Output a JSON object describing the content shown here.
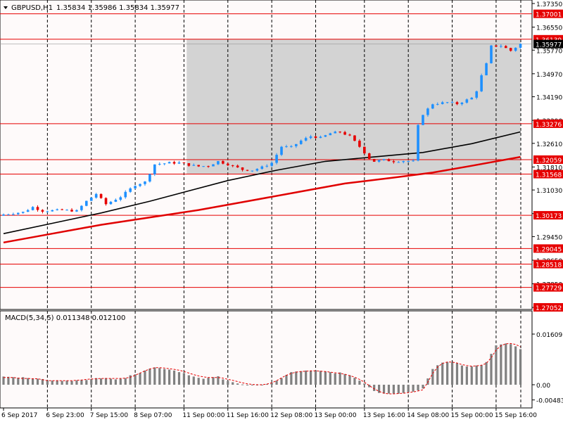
{
  "chart_data": {
    "type": "candlestick",
    "symbol_header": "GBPUSD,H1",
    "ohlc_header": "1.35834 1.35986 1.35834 1.35977",
    "ylim": [
      1.27052,
      1.3735
    ],
    "price_ticks": [
      "1.37350",
      "1.36550",
      "1.35770",
      "1.34970",
      "1.34190",
      "1.33390",
      "1.32610",
      "1.31810",
      "1.31030",
      "1.30230",
      "1.29450",
      "1.28650",
      "1.27850",
      "1.27050"
    ],
    "levels": [
      "1.37001",
      "1.36139",
      "1.33276",
      "1.32059",
      "1.31568",
      "1.30173",
      "1.29045",
      "1.28518",
      "1.27729",
      "1.27052"
    ],
    "current_price": "1.35977",
    "zone": {
      "from_index": 38,
      "to_index": 106,
      "low": 1.31568,
      "high": 1.36139
    },
    "time_labels": [
      {
        "label": "6 Sep 2017",
        "index": 0
      },
      {
        "label": "6 Sep 23:00",
        "index": 9
      },
      {
        "label": "7 Sep 15:00",
        "index": 18
      },
      {
        "label": "8 Sep 07:00",
        "index": 27
      },
      {
        "label": "11 Sep 00:00",
        "index": 37
      },
      {
        "label": "11 Sep 16:00",
        "index": 46
      },
      {
        "label": "12 Sep 08:00",
        "index": 55
      },
      {
        "label": "13 Sep 00:00",
        "index": 64
      },
      {
        "label": "13 Sep 16:00",
        "index": 74
      },
      {
        "label": "14 Sep 08:00",
        "index": 83
      },
      {
        "label": "15 Sep 00:00",
        "index": 92
      },
      {
        "label": "15 Sep 16:00",
        "index": 101
      }
    ],
    "close_path": [
      [
        0,
        1.302
      ],
      [
        4,
        1.3028
      ],
      [
        6,
        1.3045
      ],
      [
        8,
        1.3032
      ],
      [
        12,
        1.3035
      ],
      [
        15,
        1.3032
      ],
      [
        17,
        1.3065
      ],
      [
        19,
        1.309
      ],
      [
        21,
        1.3055
      ],
      [
        24,
        1.308
      ],
      [
        27,
        1.312
      ],
      [
        29,
        1.313
      ],
      [
        31,
        1.319
      ],
      [
        34,
        1.3195
      ],
      [
        36,
        1.3195
      ],
      [
        38,
        1.3188
      ],
      [
        40,
        1.3183
      ],
      [
        42,
        1.3185
      ],
      [
        44,
        1.32
      ],
      [
        46,
        1.319
      ],
      [
        49,
        1.3172
      ],
      [
        51,
        1.317
      ],
      [
        53,
        1.318
      ],
      [
        55,
        1.3195
      ],
      [
        57,
        1.325
      ],
      [
        59,
        1.3248
      ],
      [
        61,
        1.327
      ],
      [
        63,
        1.3285
      ],
      [
        65,
        1.328
      ],
      [
        67,
        1.3295
      ],
      [
        69,
        1.33
      ],
      [
        71,
        1.3285
      ],
      [
        73,
        1.325
      ],
      [
        75,
        1.321
      ],
      [
        76,
        1.32
      ],
      [
        78,
        1.3205
      ],
      [
        80,
        1.32
      ],
      [
        82,
        1.3202
      ],
      [
        84,
        1.32
      ],
      [
        85,
        1.332
      ],
      [
        86,
        1.336
      ],
      [
        88,
        1.3395
      ],
      [
        91,
        1.34
      ],
      [
        93,
        1.3395
      ],
      [
        96,
        1.3415
      ],
      [
        97,
        1.344
      ],
      [
        98,
        1.349
      ],
      [
        99,
        1.353
      ],
      [
        100,
        1.359
      ],
      [
        102,
        1.3592
      ],
      [
        104,
        1.3575
      ],
      [
        106,
        1.3598
      ]
    ],
    "moving_averages": [
      {
        "color": "#000000",
        "points": [
          [
            0,
            1.2955
          ],
          [
            10,
            1.299
          ],
          [
            20,
            1.3025
          ],
          [
            30,
            1.3065
          ],
          [
            38,
            1.31
          ],
          [
            46,
            1.3135
          ],
          [
            56,
            1.317
          ],
          [
            66,
            1.32
          ],
          [
            76,
            1.3215
          ],
          [
            86,
            1.323
          ],
          [
            96,
            1.326
          ],
          [
            106,
            1.33
          ]
        ]
      },
      {
        "color": "#e00000",
        "points": [
          [
            0,
            1.2925
          ],
          [
            10,
            1.2955
          ],
          [
            20,
            1.2985
          ],
          [
            30,
            1.301
          ],
          [
            40,
            1.3035
          ],
          [
            50,
            1.3065
          ],
          [
            60,
            1.3095
          ],
          [
            70,
            1.3125
          ],
          [
            80,
            1.3145
          ],
          [
            88,
            1.3162
          ],
          [
            96,
            1.3185
          ],
          [
            106,
            1.3215
          ]
        ]
      }
    ],
    "macd": {
      "label": "MACD(5,34,5) 0.011348 0.012100",
      "ylim": [
        -0.004835,
        0.01609
      ],
      "ticks": [
        "0.01609",
        "0.00",
        "-0.004835"
      ],
      "hist": [
        0.0026,
        0.0025,
        0.0024,
        0.0022,
        0.0024,
        0.0021,
        0.002,
        0.0019,
        0.0018,
        0.0014,
        0.0013,
        0.0014,
        0.0012,
        0.0013,
        0.0012,
        0.0014,
        0.0015,
        0.0015,
        0.0018,
        0.0021,
        0.002,
        0.0021,
        0.0019,
        0.0017,
        0.0019,
        0.0021,
        0.003,
        0.0033,
        0.0037,
        0.0045,
        0.0051,
        0.0055,
        0.0053,
        0.005,
        0.0048,
        0.0045,
        0.004,
        0.0037,
        0.003,
        0.0026,
        0.0022,
        0.0019,
        0.0022,
        0.0024,
        0.0027,
        0.0017,
        0.0012,
        0.0008,
        0.0004,
        0.0001,
        -0.0002,
        -0.0002,
        -0.0001,
        0.0,
        0.0002,
        0.0006,
        0.0013,
        0.0021,
        0.0031,
        0.004,
        0.0042,
        0.0043,
        0.0045,
        0.0045,
        0.0046,
        0.0044,
        0.0042,
        0.004,
        0.0036,
        0.0039,
        0.0034,
        0.003,
        0.0022,
        0.0013,
        0.0004,
        -0.0008,
        -0.002,
        -0.0026,
        -0.0028,
        -0.0028,
        -0.0028,
        -0.0028,
        -0.0026,
        -0.0024,
        -0.0022,
        -0.0018,
        -0.0012,
        0.002,
        0.005,
        0.0062,
        0.007,
        0.0072,
        0.0071,
        0.0068,
        0.0061,
        0.0058,
        0.0058,
        0.0061,
        0.0062,
        0.0072,
        0.0098,
        0.0125,
        0.0128,
        0.0131,
        0.0129,
        0.0122,
        0.0113
      ],
      "signal": [
        0.0023,
        0.0023,
        0.0023,
        0.0021,
        0.002,
        0.002,
        0.0019,
        0.0019,
        0.0016,
        0.0013,
        0.0013,
        0.0013,
        0.0013,
        0.0013,
        0.0013,
        0.0014,
        0.0015,
        0.0017,
        0.0018,
        0.0019,
        0.002,
        0.002,
        0.002,
        0.002,
        0.002,
        0.0021,
        0.0024,
        0.003,
        0.0037,
        0.0044,
        0.005,
        0.0054,
        0.0054,
        0.0053,
        0.0051,
        0.0049,
        0.0046,
        0.0042,
        0.0037,
        0.0032,
        0.0028,
        0.0025,
        0.0023,
        0.0023,
        0.0023,
        0.0021,
        0.0017,
        0.0014,
        0.001,
        0.0006,
        0.0003,
        0.0001,
        0.0,
        0.0,
        0.0002,
        0.0006,
        0.0013,
        0.0022,
        0.003,
        0.0036,
        0.004,
        0.0042,
        0.0043,
        0.0044,
        0.0044,
        0.0043,
        0.0042,
        0.004,
        0.0038,
        0.0036,
        0.0033,
        0.0029,
        0.0024,
        0.0017,
        0.0008,
        -0.0003,
        -0.0013,
        -0.0021,
        -0.0027,
        -0.0029,
        -0.0029,
        -0.0028,
        -0.0027,
        -0.0025,
        -0.0023,
        -0.002,
        -0.0016,
        0.0008,
        0.0036,
        0.0056,
        0.0068,
        0.0072,
        0.0072,
        0.0069,
        0.0064,
        0.0061,
        0.0059,
        0.006,
        0.0062,
        0.0068,
        0.0086,
        0.011,
        0.0124,
        0.013,
        0.0131,
        0.0128,
        0.0121
      ]
    }
  },
  "colors": {
    "background": "#fefafa",
    "up_candle": "#1e90ff",
    "down_candle": "#e60000",
    "level_line": "#e60000",
    "level_label_bg": "#e60000",
    "zone_fill": "#d3d3d3",
    "macd_hist": "#808080",
    "macd_signal": "#e60000",
    "current_price_bg": "#000000"
  }
}
